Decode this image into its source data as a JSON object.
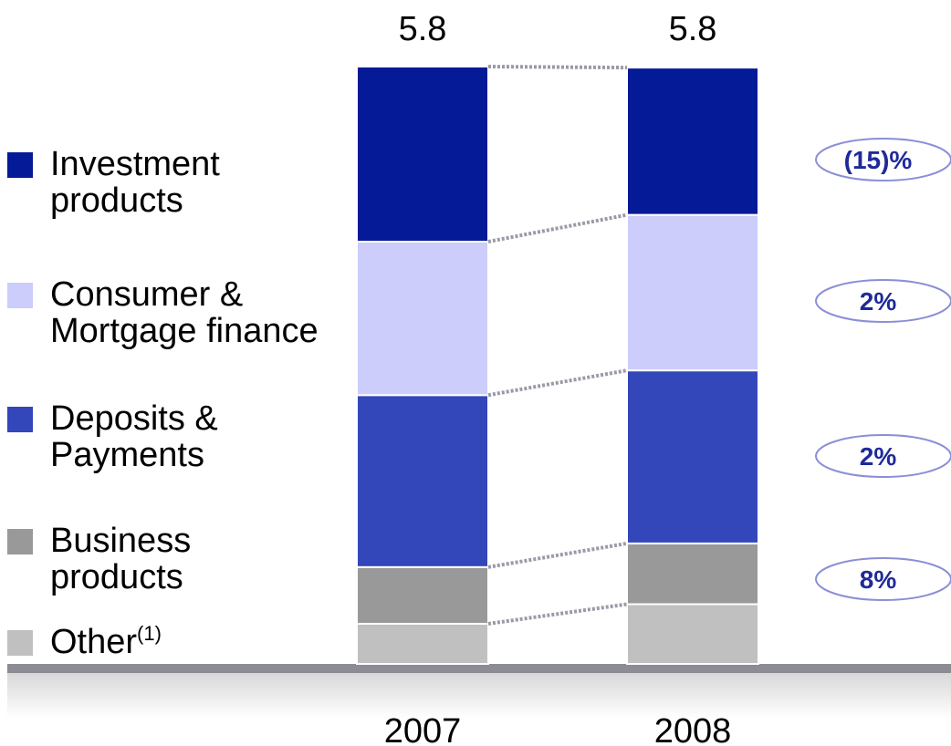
{
  "chart_data": {
    "type": "stacked_bar",
    "categories": [
      "2007",
      "2008"
    ],
    "totals": [
      5.8,
      5.8
    ],
    "ylim": [
      0,
      5.8
    ],
    "series": [
      {
        "name": "Other",
        "note": "(1)",
        "color": "#c0c0c0",
        "values": [
          0.39,
          0.58
        ]
      },
      {
        "name": "Business products",
        "color": "#999999",
        "values": [
          0.55,
          0.59
        ]
      },
      {
        "name": "Deposits & Payments",
        "color": "#3347bb",
        "values": [
          1.67,
          1.68
        ]
      },
      {
        "name": "Consumer & Mortgage finance",
        "color": "#cccdfb",
        "values": [
          1.49,
          1.51
        ]
      },
      {
        "name": "Investment products",
        "color": "#041a96",
        "values": [
          1.7,
          1.43
        ]
      }
    ],
    "annotations": [
      "8%",
      "2%",
      "2%",
      "(15)%"
    ]
  }
}
